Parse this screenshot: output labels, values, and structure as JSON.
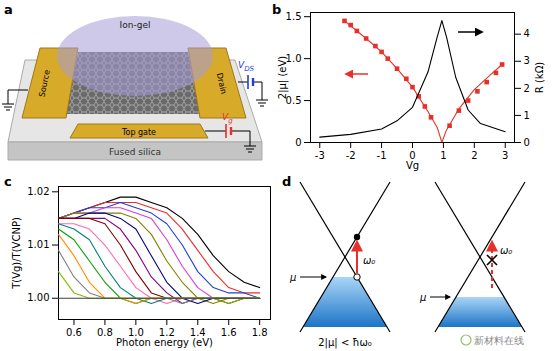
{
  "chart_data": [
    {
      "type": "line",
      "title": "b",
      "x_label": "Vg",
      "y_label": "2|μ| (eV)",
      "y2_label": "R (kΩ)",
      "xlim": [
        -3.3,
        3.3
      ],
      "xticks": [
        -3,
        -2,
        -1,
        0,
        1,
        2,
        3
      ],
      "ylim": [
        0,
        1.55
      ],
      "yticks": [
        0,
        0.5,
        {
          "value": 1,
          "label": "1.0"
        },
        1.5
      ],
      "y2lim": [
        0,
        4.8
      ],
      "y2ticks": [
        0,
        1,
        2,
        3,
        4
      ],
      "grid": false,
      "series": [
        {
          "type": "scatter",
          "marker": "square",
          "color": "#e8302a",
          "x": [
            -2.2,
            -2,
            -1.8,
            -1.5,
            -1.2,
            -1,
            -0.8,
            -0.5,
            -0.2,
            0,
            0.2,
            0.4,
            0.6,
            1.2,
            1.5,
            1.8,
            2.1,
            2.4,
            2.7,
            2.9
          ],
          "values": [
            1.45,
            1.4,
            1.33,
            1.24,
            1.15,
            1.08,
            1.0,
            0.88,
            0.76,
            0.66,
            0.55,
            0.43,
            0.3,
            0.2,
            0.38,
            0.5,
            0.61,
            0.72,
            0.83,
            0.93
          ]
        },
        {
          "type": "line",
          "color": "#e8302a",
          "x": [
            -2.2,
            -1.5,
            -1,
            -0.5,
            0,
            0.5,
            0.8,
            0.95,
            1.1,
            1.5,
            2,
            2.5,
            2.9
          ],
          "values": [
            1.45,
            1.24,
            1.08,
            0.88,
            0.66,
            0.37,
            0.18,
            0,
            0.15,
            0.4,
            0.63,
            0.8,
            0.93
          ]
        },
        {
          "type": "line",
          "color": "#000000",
          "axis": "y2",
          "x": [
            -3,
            -2,
            -1,
            -0.5,
            0,
            0.5,
            0.8,
            0.95,
            1.1,
            1.4,
            1.8,
            2.2,
            3
          ],
          "values": [
            0.2,
            0.3,
            0.5,
            0.8,
            1.3,
            2.6,
            3.9,
            4.5,
            3.9,
            2.4,
            1.2,
            0.7,
            0.4
          ]
        }
      ]
    },
    {
      "type": "line",
      "title": "c",
      "x_label": "Photon energy (eV)",
      "y_label": "T(Vg)/T(VCNP)",
      "xlim": [
        0.5,
        1.87
      ],
      "xticks": [
        0.6,
        0.8,
        {
          "value": 1,
          "label": "1.0"
        },
        1.2,
        1.4,
        1.6,
        1.8
      ],
      "ylim": [
        0.996,
        1.021
      ],
      "yticks": [
        {
          "value": 1,
          "label": "1.00"
        },
        {
          "value": 1.01,
          "label": "1.01"
        },
        {
          "value": 1.02,
          "label": "1.02"
        }
      ],
      "grid": false,
      "x": [
        0.5,
        0.6,
        0.7,
        0.8,
        0.9,
        1.0,
        1.1,
        1.2,
        1.3,
        1.4,
        1.5,
        1.6,
        1.7,
        1.8
      ],
      "series": [
        {
          "color": "#000000",
          "values": [
            1.015,
            1.016,
            1.017,
            1.018,
            1.019,
            1.019,
            1.018,
            1.017,
            1.015,
            1.012,
            1.008,
            1.005,
            1.003,
            1.002
          ]
        },
        {
          "color": "#e8302a",
          "values": [
            1.015,
            1.016,
            1.017,
            1.018,
            1.018,
            1.018,
            1.017,
            1.016,
            1.013,
            1.009,
            1.005,
            1.002,
            1.001,
            1.001
          ]
        },
        {
          "color": "#1f3fd6",
          "values": [
            1.015,
            1.016,
            1.017,
            1.017,
            1.018,
            1.017,
            1.016,
            1.014,
            1.01,
            1.005,
            1.002,
            1.001,
            1.001,
            1.0
          ]
        },
        {
          "color": "#d63fd6",
          "values": [
            1.015,
            1.016,
            1.016,
            1.017,
            1.017,
            1.016,
            1.015,
            1.011,
            1.006,
            1.002,
            1.0,
            1.0,
            1.0,
            1.0
          ]
        },
        {
          "color": "#808000",
          "values": [
            1.015,
            1.016,
            1.016,
            1.016,
            1.016,
            1.015,
            1.012,
            1.007,
            1.003,
            1.0,
            0.999,
            1.0,
            1.0,
            1.0
          ]
        },
        {
          "color": "#000080",
          "values": [
            1.015,
            1.015,
            1.016,
            1.016,
            1.015,
            1.013,
            1.008,
            1.003,
            1.0,
            0.999,
            1.0,
            1.0,
            1.0,
            1.0
          ]
        },
        {
          "color": "#800080",
          "values": [
            1.015,
            1.015,
            1.015,
            1.015,
            1.013,
            1.009,
            1.004,
            1.001,
            0.999,
            1.0,
            1.0,
            1.0,
            1.0,
            1.0
          ]
        },
        {
          "color": "#800000",
          "values": [
            1.015,
            1.015,
            1.015,
            1.014,
            1.01,
            1.005,
            1.001,
            1.0,
            1.0,
            1.0,
            1.0,
            0.999,
            1.0,
            1.0
          ]
        },
        {
          "color": "#ff69b4",
          "values": [
            1.014,
            1.014,
            1.013,
            1.01,
            1.006,
            1.002,
            1.0,
            0.999,
            1.0,
            1.0,
            1.0,
            1.0,
            1.0,
            1.0
          ]
        },
        {
          "color": "#008080",
          "values": [
            1.014,
            1.013,
            1.011,
            1.006,
            1.002,
            1.0,
            0.999,
            1.0,
            1.0,
            1.0,
            1.0,
            1.0,
            1.0,
            1.0
          ]
        },
        {
          "color": "#00a000",
          "values": [
            1.013,
            1.011,
            1.007,
            1.003,
            1.0,
            0.999,
            1.0,
            1.0,
            1.0,
            1.0,
            1.0,
            1.0,
            1.0,
            1.0
          ]
        },
        {
          "color": "#ff8c00",
          "values": [
            1.012,
            1.008,
            1.003,
            1.0,
            1.0,
            0.999,
            1.0,
            1.0,
            1.0,
            1.0,
            1.0,
            1.0,
            1.0,
            1.0
          ]
        },
        {
          "color": "#808080",
          "values": [
            1.009,
            1.004,
            1.001,
            1.0,
            1.0,
            1.0,
            1.0,
            1.0,
            0.999,
            1.0,
            1.0,
            1.0,
            1.0,
            1.0
          ]
        },
        {
          "color": "#7fbf00",
          "values": [
            1.005,
            1.001,
            1.0,
            1.0,
            1.0,
            1.0,
            1.0,
            1.0,
            1.0,
            1.0,
            1.0,
            0.999,
            1.0,
            1.0
          ]
        },
        {
          "color": "#404040",
          "values": [
            1.0,
            1.0,
            1.0,
            1.0,
            1.0,
            1.0,
            1.0,
            1.0,
            1.0,
            1.0,
            1.0,
            1.0,
            1.0,
            1.0
          ]
        }
      ]
    }
  ],
  "diagrams": {
    "a": {
      "label": "a",
      "ion_gel": "Ion-gel",
      "source": "Source",
      "drain": "Drain",
      "top_gate": "Top gate",
      "substrate": "Fused silica",
      "drain_voltage": {
        "base": "V",
        "sub": "DS"
      },
      "gate_voltage": {
        "base": "V",
        "sub": "g"
      }
    },
    "d": {
      "label": "d",
      "left": {
        "mu": "μ",
        "omega": "ω₀",
        "caption": "2|μ| < ħω₀"
      },
      "right": {
        "mu": "μ",
        "omega": "ω₀"
      }
    }
  },
  "watermark": "新材料在线"
}
